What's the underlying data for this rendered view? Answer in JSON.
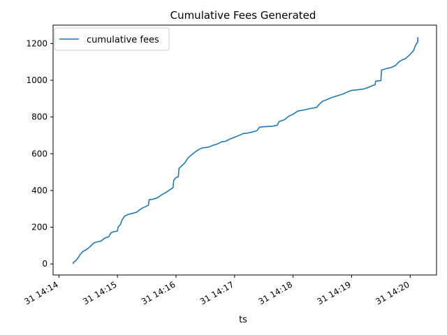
{
  "chart_data": {
    "type": "line",
    "title": "Cumulative Fees Generated",
    "xlabel": "ts",
    "ylabel": "",
    "x_unit": "minutes after 14:14",
    "xlim": [
      -0.1,
      6.45
    ],
    "ylim": [
      -60,
      1300
    ],
    "x_ticks": [
      {
        "value": 0,
        "label": "31 14:14"
      },
      {
        "value": 1,
        "label": "31 14:15"
      },
      {
        "value": 2,
        "label": "31 14:16"
      },
      {
        "value": 3,
        "label": "31 14:17"
      },
      {
        "value": 4,
        "label": "31 14:18"
      },
      {
        "value": 5,
        "label": "31 14:19"
      },
      {
        "value": 6,
        "label": "31 14:20"
      }
    ],
    "y_ticks": [
      0,
      200,
      400,
      600,
      800,
      1000,
      1200
    ],
    "grid": false,
    "legend_position": "top-left",
    "series": [
      {
        "name": "cumulative fees",
        "color": "#1f77b4",
        "points": [
          [
            0.24,
            0
          ],
          [
            0.25,
            10
          ],
          [
            0.28,
            15
          ],
          [
            0.32,
            30
          ],
          [
            0.36,
            50
          ],
          [
            0.4,
            65
          ],
          [
            0.45,
            75
          ],
          [
            0.5,
            85
          ],
          [
            0.55,
            100
          ],
          [
            0.6,
            115
          ],
          [
            0.65,
            120
          ],
          [
            0.72,
            125
          ],
          [
            0.78,
            140
          ],
          [
            0.85,
            148
          ],
          [
            0.89,
            170
          ],
          [
            0.93,
            175
          ],
          [
            0.98,
            178
          ],
          [
            1.0,
            180
          ],
          [
            1.01,
            200
          ],
          [
            1.05,
            215
          ],
          [
            1.08,
            240
          ],
          [
            1.12,
            260
          ],
          [
            1.17,
            268
          ],
          [
            1.25,
            275
          ],
          [
            1.33,
            282
          ],
          [
            1.38,
            295
          ],
          [
            1.43,
            305
          ],
          [
            1.48,
            312
          ],
          [
            1.53,
            320
          ],
          [
            1.54,
            350
          ],
          [
            1.6,
            352
          ],
          [
            1.68,
            360
          ],
          [
            1.75,
            375
          ],
          [
            1.83,
            390
          ],
          [
            1.9,
            405
          ],
          [
            1.95,
            415
          ],
          [
            1.96,
            455
          ],
          [
            2.0,
            470
          ],
          [
            2.04,
            475
          ],
          [
            2.05,
            520
          ],
          [
            2.1,
            535
          ],
          [
            2.15,
            550
          ],
          [
            2.2,
            575
          ],
          [
            2.25,
            590
          ],
          [
            2.3,
            603
          ],
          [
            2.35,
            615
          ],
          [
            2.4,
            625
          ],
          [
            2.45,
            632
          ],
          [
            2.55,
            635
          ],
          [
            2.62,
            645
          ],
          [
            2.7,
            652
          ],
          [
            2.78,
            665
          ],
          [
            2.85,
            668
          ],
          [
            2.92,
            680
          ],
          [
            3.0,
            690
          ],
          [
            3.08,
            700
          ],
          [
            3.15,
            710
          ],
          [
            3.22,
            712
          ],
          [
            3.3,
            718
          ],
          [
            3.38,
            725
          ],
          [
            3.43,
            745
          ],
          [
            3.55,
            748
          ],
          [
            3.65,
            750
          ],
          [
            3.73,
            755
          ],
          [
            3.76,
            775
          ],
          [
            3.85,
            785
          ],
          [
            3.93,
            805
          ],
          [
            4.0,
            815
          ],
          [
            4.08,
            832
          ],
          [
            4.18,
            838
          ],
          [
            4.28,
            845
          ],
          [
            4.4,
            852
          ],
          [
            4.45,
            870
          ],
          [
            4.5,
            885
          ],
          [
            4.58,
            895
          ],
          [
            4.65,
            905
          ],
          [
            4.75,
            915
          ],
          [
            4.85,
            925
          ],
          [
            4.92,
            935
          ],
          [
            5.0,
            945
          ],
          [
            5.1,
            948
          ],
          [
            5.2,
            952
          ],
          [
            5.28,
            960
          ],
          [
            5.35,
            970
          ],
          [
            5.4,
            975
          ],
          [
            5.41,
            995
          ],
          [
            5.5,
            998
          ],
          [
            5.51,
            1055
          ],
          [
            5.58,
            1062
          ],
          [
            5.68,
            1070
          ],
          [
            5.75,
            1080
          ],
          [
            5.8,
            1098
          ],
          [
            5.86,
            1110
          ],
          [
            5.92,
            1118
          ],
          [
            5.98,
            1135
          ],
          [
            6.02,
            1148
          ],
          [
            6.06,
            1163
          ],
          [
            6.08,
            1182
          ],
          [
            6.1,
            1195
          ],
          [
            6.12,
            1205
          ],
          [
            6.13,
            1208
          ],
          [
            6.13,
            1235
          ]
        ]
      }
    ]
  }
}
